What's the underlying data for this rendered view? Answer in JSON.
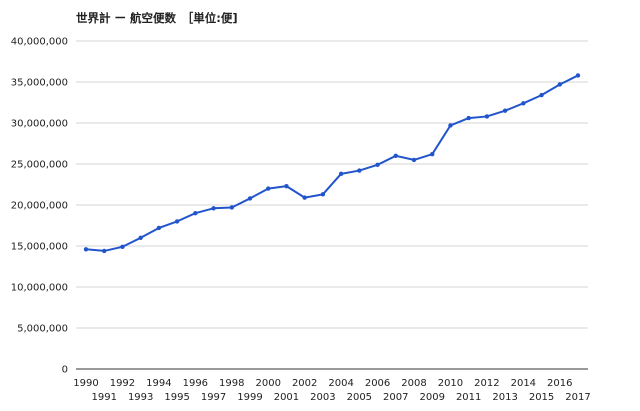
{
  "chart_data": {
    "type": "line",
    "title": "世界計 ー 航空便数　［単位:便]",
    "x": [
      1990,
      1991,
      1992,
      1993,
      1994,
      1995,
      1996,
      1997,
      1998,
      1999,
      2000,
      2001,
      2002,
      2003,
      2004,
      2005,
      2006,
      2007,
      2008,
      2009,
      2010,
      2011,
      2012,
      2013,
      2014,
      2015,
      2016,
      2017
    ],
    "series": [
      {
        "values": [
          14600000,
          14400000,
          14900000,
          16000000,
          17200000,
          18000000,
          19000000,
          19600000,
          19700000,
          20800000,
          22000000,
          22300000,
          20900000,
          21300000,
          23800000,
          24200000,
          24900000,
          26000000,
          25500000,
          26200000,
          29700000,
          30600000,
          30800000,
          31500000,
          32400000,
          33400000,
          34700000,
          35800000
        ],
        "color": "#2255cc"
      }
    ],
    "ylim": [
      0,
      40000000
    ],
    "yticks": [
      "0",
      "5,000,000",
      "10,000,000",
      "15,000,000",
      "20,000,000",
      "25,000,000",
      "30,000,000",
      "35,000,000",
      "40,000,000"
    ],
    "xticks": [
      "1990",
      "1991",
      "1992",
      "1993",
      "1994",
      "1995",
      "1996",
      "1997",
      "1998",
      "1999",
      "2000",
      "2001",
      "2002",
      "2003",
      "2004",
      "2005",
      "2006",
      "2007",
      "2008",
      "2009",
      "2010",
      "2011",
      "2012",
      "2013",
      "2014",
      "2015",
      "2016",
      "2017"
    ],
    "grid": true,
    "legend": "none"
  }
}
